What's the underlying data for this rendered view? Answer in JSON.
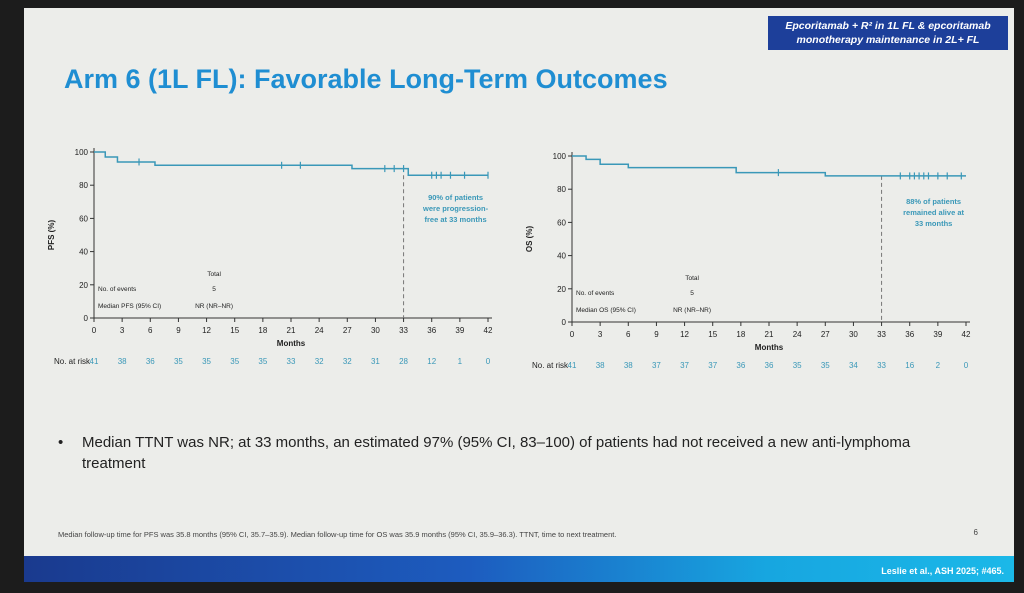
{
  "header": {
    "tag_line1": "Epcoritamab + R² in 1L FL & epcoritamab",
    "tag_line2": "monotherapy maintenance in 2L+ FL",
    "title": "Arm 6 (1L FL): Favorable Long-Term Outcomes"
  },
  "chart_data": [
    {
      "type": "line",
      "ylabel": "PFS (%)",
      "xlabel": "Months",
      "x_ticks": [
        0,
        3,
        6,
        9,
        12,
        15,
        18,
        21,
        24,
        27,
        30,
        33,
        36,
        39,
        42
      ],
      "y_ticks": [
        0,
        20,
        40,
        60,
        80,
        100
      ],
      "xlim": [
        0,
        42
      ],
      "ylim": [
        0,
        100
      ],
      "grid": false,
      "series": [
        {
          "x": [
            0,
            1.2,
            1.2,
            2.5,
            2.5,
            6.5,
            6.5,
            27.5,
            27.5,
            33.5,
            33.5,
            42
          ],
          "y": [
            100,
            100,
            97,
            97,
            94,
            94,
            92,
            92,
            90,
            90,
            86,
            86
          ]
        }
      ],
      "censor_x": [
        4.8,
        20,
        22,
        31,
        32,
        33,
        36,
        36.5,
        37,
        38,
        39.5,
        42
      ],
      "reference_x": 33,
      "annotation": [
        "90% of patients",
        "were progression-",
        "free at 33 months"
      ],
      "table_header": "Total",
      "table_rows": [
        {
          "label": "No. of events",
          "value": "5"
        },
        {
          "label": "Median PFS (95% CI)",
          "value": "NR (NR–NR)"
        }
      ],
      "at_risk_label": "No. at risk",
      "at_risk": [
        "41",
        "38",
        "36",
        "35",
        "35",
        "35",
        "35",
        "33",
        "32",
        "32",
        "31",
        "28",
        "12",
        "1",
        "0"
      ]
    },
    {
      "type": "line",
      "ylabel": "OS (%)",
      "xlabel": "Months",
      "x_ticks": [
        0,
        3,
        6,
        9,
        12,
        15,
        18,
        21,
        24,
        27,
        30,
        33,
        36,
        39,
        42
      ],
      "y_ticks": [
        0,
        20,
        40,
        60,
        80,
        100
      ],
      "xlim": [
        0,
        42
      ],
      "ylim": [
        0,
        100
      ],
      "grid": false,
      "series": [
        {
          "x": [
            0,
            1.5,
            1.5,
            3,
            3,
            6,
            6,
            17.5,
            17.5,
            27,
            27,
            42
          ],
          "y": [
            100,
            100,
            98,
            98,
            95,
            95,
            93,
            93,
            90,
            90,
            88,
            88
          ]
        }
      ],
      "censor_x": [
        22,
        35,
        36,
        36.5,
        37,
        37.5,
        38,
        39,
        40,
        41.5
      ],
      "reference_x": 33,
      "annotation": [
        "88% of patients",
        "remained alive at",
        "33 months"
      ],
      "table_header": "Total",
      "table_rows": [
        {
          "label": "No. of events",
          "value": "5"
        },
        {
          "label": "Median OS (95% CI)",
          "value": "NR (NR–NR)"
        }
      ],
      "at_risk_label": "No. at risk",
      "at_risk": [
        "41",
        "38",
        "38",
        "37",
        "37",
        "37",
        "36",
        "36",
        "35",
        "35",
        "34",
        "33",
        "16",
        "2",
        "0"
      ]
    }
  ],
  "bullet": {
    "marker": "•",
    "text": "Median TTNT was NR; at 33 months, an estimated 97% (95% CI, 83–100) of patients had not received a new anti-lymphoma treatment"
  },
  "footnote": "Median follow-up time for PFS was 35.8 months (95% CI, 35.7–35.9). Median follow-up time for OS was 35.9 months (95% CI, 35.9–36.3). TTNT, time to next treatment.",
  "page_number": "6",
  "citation": "Leslie et al., ASH 2025; #465.",
  "colors": {
    "curve": "#3a98b8",
    "accent": "#1f8ed2",
    "banner": "#1d3f9a",
    "reference_line": "#777777"
  }
}
